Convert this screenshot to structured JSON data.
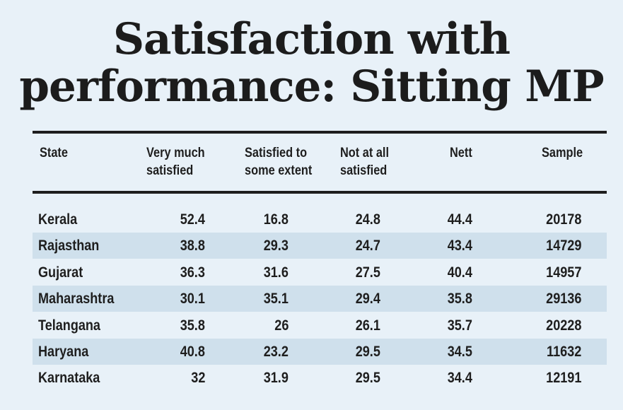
{
  "chart_data": {
    "type": "table",
    "title": [
      "Satisfaction with",
      "performance: Sitting MP"
    ],
    "columns": [
      [
        "State"
      ],
      [
        "Very much",
        "satisfied"
      ],
      [
        "Satisfied to",
        "some extent"
      ],
      [
        "Not at all",
        "satisfied"
      ],
      [
        "Nett"
      ],
      [
        "Sample"
      ]
    ],
    "rows": [
      [
        "Kerala",
        "52.4",
        "16.8",
        "24.8",
        "44.4",
        "20178"
      ],
      [
        "Rajasthan",
        "38.8",
        "29.3",
        "24.7",
        "43.4",
        "14729"
      ],
      [
        "Gujarat",
        "36.3",
        "31.6",
        "27.5",
        "40.4",
        "14957"
      ],
      [
        "Maharashtra",
        "30.1",
        "35.1",
        "29.4",
        "35.8",
        "29136"
      ],
      [
        "Telangana",
        "35.8",
        "26",
        "26.1",
        "35.7",
        "20228"
      ],
      [
        "Haryana",
        "40.8",
        "23.2",
        "29.5",
        "34.5",
        "11632"
      ],
      [
        "Karnataka",
        "32",
        "31.9",
        "29.5",
        "34.4",
        "12191"
      ]
    ]
  },
  "colors": {
    "background": "#e8f1f8",
    "shaded_row": "#cfe0ec",
    "text": "#1e1e1e"
  }
}
